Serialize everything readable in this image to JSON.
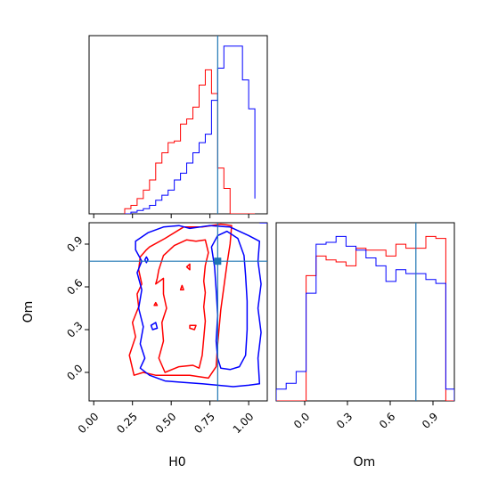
{
  "chart_data": {
    "type": "corner",
    "parameters": [
      "H0",
      "Om"
    ],
    "truth": {
      "H0": 0.8,
      "Om": 0.78
    },
    "truth_color": "#1f77b4",
    "series": [
      {
        "color": "#ff0000"
      },
      {
        "color": "#0000ff"
      }
    ],
    "hist_H0": {
      "xlim": [
        -0.03,
        1.12
      ],
      "ticks": [
        0.0,
        0.25,
        0.5,
        0.75,
        1.0
      ],
      "tick_labels": [
        "0.00",
        "0.25",
        "0.50",
        "0.75",
        "1.00"
      ],
      "bin_edges": [
        0.2,
        0.24,
        0.28,
        0.32,
        0.36,
        0.4,
        0.44,
        0.48,
        0.52,
        0.56,
        0.6,
        0.64,
        0.68,
        0.72,
        0.76,
        0.8,
        0.84,
        0.88,
        0.92,
        0.96,
        1.0,
        1.04
      ],
      "red_counts": [
        0.03,
        0.05,
        0.09,
        0.14,
        0.2,
        0.3,
        0.36,
        0.42,
        0.43,
        0.53,
        0.56,
        0.63,
        0.76,
        0.85,
        0.71,
        0.27,
        0.15,
        0,
        0,
        0,
        0,
        0
      ],
      "blue_counts": [
        0,
        0.01,
        0.02,
        0.03,
        0.05,
        0.08,
        0.11,
        0.14,
        0.2,
        0.24,
        0.3,
        0.36,
        0.42,
        0.47,
        0.67,
        0.86,
        0.99,
        0.99,
        0.99,
        0.79,
        0.62,
        0.09
      ]
    },
    "hist_Om": {
      "xlim": [
        -0.2,
        1.05
      ],
      "ticks": [
        0.0,
        0.3,
        0.6,
        0.9
      ],
      "tick_labels": [
        "0.0",
        "0.3",
        "0.6",
        "0.9"
      ],
      "bin_edges": [
        -0.2,
        -0.13,
        -0.06,
        0.01,
        0.08,
        0.15,
        0.22,
        0.29,
        0.36,
        0.43,
        0.5,
        0.57,
        0.64,
        0.71,
        0.78,
        0.85,
        0.92,
        0.99,
        1.05
      ],
      "red_counts": [
        0,
        0,
        0,
        0.64,
        0.74,
        0.72,
        0.71,
        0.69,
        0.78,
        0.77,
        0.77,
        0.74,
        0.8,
        0.78,
        0.78,
        0.84,
        0.83,
        0
      ],
      "blue_counts": [
        0.06,
        0.09,
        0.15,
        0.55,
        0.8,
        0.81,
        0.84,
        0.79,
        0.77,
        0.73,
        0.69,
        0.61,
        0.67,
        0.65,
        0.65,
        0.62,
        0.6,
        0.06
      ]
    },
    "scatter_panel": {
      "x_param": "H0",
      "y_param": "Om",
      "xlim": [
        -0.03,
        1.12
      ],
      "ylim": [
        -0.2,
        1.05
      ],
      "xticks": [
        0.0,
        0.25,
        0.5,
        0.75,
        1.0
      ],
      "xtick_labels": [
        "0.00",
        "0.25",
        "0.50",
        "0.75",
        "1.00"
      ],
      "yticks": [
        0.0,
        0.3,
        0.6,
        0.9
      ],
      "ytick_labels": [
        "0.0",
        "0.3",
        "0.6",
        "0.9"
      ],
      "red_contours": [
        [
          [
            0.36,
            0.88
          ],
          [
            0.46,
            0.94
          ],
          [
            0.58,
            1.02
          ],
          [
            0.7,
            1.02
          ],
          [
            0.82,
            1.04
          ],
          [
            0.89,
            1.03
          ],
          [
            0.88,
            0.9
          ],
          [
            0.86,
            0.76
          ],
          [
            0.84,
            0.6
          ],
          [
            0.82,
            0.44
          ],
          [
            0.8,
            0.2
          ],
          [
            0.79,
            0.04
          ],
          [
            0.74,
            -0.04
          ],
          [
            0.62,
            -0.02
          ],
          [
            0.5,
            -0.02
          ],
          [
            0.4,
            -0.02
          ],
          [
            0.32,
            0.0
          ],
          [
            0.26,
            -0.02
          ],
          [
            0.23,
            0.12
          ],
          [
            0.27,
            0.25
          ],
          [
            0.25,
            0.35
          ],
          [
            0.29,
            0.46
          ],
          [
            0.28,
            0.55
          ],
          [
            0.31,
            0.62
          ],
          [
            0.29,
            0.72
          ],
          [
            0.3,
            0.81
          ],
          [
            0.34,
            0.86
          ]
        ],
        [
          [
            0.4,
            0.62
          ],
          [
            0.45,
            0.66
          ],
          [
            0.45,
            0.55
          ],
          [
            0.47,
            0.45
          ],
          [
            0.44,
            0.35
          ],
          [
            0.45,
            0.22
          ],
          [
            0.42,
            0.1
          ],
          [
            0.46,
            0.0
          ],
          [
            0.55,
            0.04
          ],
          [
            0.64,
            0.05
          ],
          [
            0.68,
            0.03
          ],
          [
            0.7,
            0.12
          ],
          [
            0.71,
            0.24
          ],
          [
            0.72,
            0.36
          ],
          [
            0.71,
            0.46
          ],
          [
            0.72,
            0.56
          ],
          [
            0.71,
            0.64
          ],
          [
            0.72,
            0.75
          ],
          [
            0.74,
            0.84
          ],
          [
            0.72,
            0.93
          ],
          [
            0.66,
            0.92
          ],
          [
            0.6,
            0.93
          ],
          [
            0.52,
            0.89
          ],
          [
            0.45,
            0.82
          ],
          [
            0.42,
            0.72
          ],
          [
            0.41,
            0.66
          ]
        ],
        [
          [
            0.6,
            0.74
          ],
          [
            0.62,
            0.76
          ],
          [
            0.62,
            0.72
          ],
          [
            0.6,
            0.74
          ]
        ],
        [
          [
            0.39,
            0.47
          ],
          [
            0.4,
            0.49
          ],
          [
            0.41,
            0.47
          ],
          [
            0.39,
            0.47
          ]
        ],
        [
          [
            0.62,
            0.33
          ],
          [
            0.66,
            0.33
          ],
          [
            0.65,
            0.3
          ],
          [
            0.62,
            0.31
          ]
        ],
        [
          [
            0.56,
            0.58
          ],
          [
            0.57,
            0.61
          ],
          [
            0.58,
            0.58
          ],
          [
            0.56,
            0.58
          ]
        ]
      ],
      "blue_contours": [
        [
          [
            0.27,
            0.92
          ],
          [
            0.35,
            0.98
          ],
          [
            0.45,
            1.02
          ],
          [
            0.55,
            1.03
          ],
          [
            0.62,
            1.01
          ],
          [
            0.75,
            1.03
          ],
          [
            0.88,
            1.02
          ],
          [
            1.0,
            0.96
          ],
          [
            1.07,
            0.92
          ],
          [
            1.06,
            0.78
          ],
          [
            1.08,
            0.62
          ],
          [
            1.06,
            0.45
          ],
          [
            1.08,
            0.28
          ],
          [
            1.06,
            0.1
          ],
          [
            1.07,
            -0.08
          ],
          [
            1.0,
            -0.09
          ],
          [
            0.9,
            -0.1
          ],
          [
            0.8,
            -0.09
          ],
          [
            0.7,
            -0.08
          ],
          [
            0.58,
            -0.07
          ],
          [
            0.46,
            -0.06
          ],
          [
            0.36,
            -0.02
          ],
          [
            0.3,
            0.03
          ],
          [
            0.33,
            0.1
          ],
          [
            0.3,
            0.2
          ],
          [
            0.32,
            0.32
          ],
          [
            0.29,
            0.45
          ],
          [
            0.31,
            0.58
          ],
          [
            0.28,
            0.7
          ],
          [
            0.31,
            0.78
          ],
          [
            0.27,
            0.86
          ]
        ],
        [
          [
            0.82,
            0.03
          ],
          [
            0.88,
            0.02
          ],
          [
            0.94,
            0.04
          ],
          [
            0.98,
            0.12
          ],
          [
            0.99,
            0.3
          ],
          [
            0.99,
            0.5
          ],
          [
            0.98,
            0.68
          ],
          [
            0.97,
            0.82
          ],
          [
            0.93,
            0.94
          ],
          [
            0.86,
            0.99
          ],
          [
            0.8,
            0.96
          ],
          [
            0.76,
            0.88
          ],
          [
            0.78,
            0.74
          ],
          [
            0.79,
            0.58
          ],
          [
            0.8,
            0.4
          ],
          [
            0.79,
            0.22
          ],
          [
            0.8,
            0.1
          ]
        ],
        [
          [
            0.37,
            0.33
          ],
          [
            0.4,
            0.35
          ],
          [
            0.41,
            0.31
          ],
          [
            0.38,
            0.3
          ]
        ],
        [
          [
            0.33,
            0.79
          ],
          [
            0.34,
            0.81
          ],
          [
            0.35,
            0.79
          ],
          [
            0.34,
            0.77
          ]
        ],
        [
          [
            1.07,
            1.05
          ],
          [
            1.12,
            1.05
          ]
        ]
      ]
    }
  }
}
